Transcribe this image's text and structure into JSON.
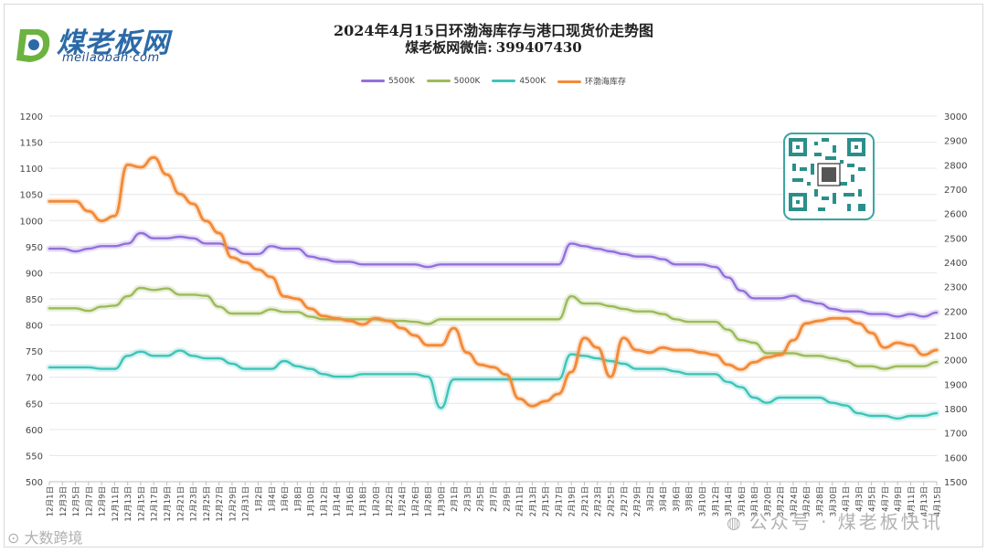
{
  "header": {
    "title": "2024年4月15日环渤海库存与港口现货价走势图",
    "subtitle_prefix": "煤老板网微信:",
    "subtitle_id": "399407430"
  },
  "logo": {
    "cn": "煤老板网",
    "en": "meilaoban·com"
  },
  "watermarks": {
    "left": "大数跨境",
    "right": "公众号 · 煤老板快讯"
  },
  "colors": {
    "s5500": "#9370db",
    "s5000": "#9cbb59",
    "s4500": "#3ec4b9",
    "inventory": "#f28b3a"
  },
  "chart_data": {
    "type": "line",
    "title": "2024年4月15日环渤海库存与港口现货价走势图",
    "left_axis": {
      "ylim": [
        500,
        1200
      ],
      "ticks": [
        "500",
        "550",
        "600",
        "650",
        "700",
        "750",
        "800",
        "850",
        "900",
        "950",
        "1000",
        "1050",
        "1100",
        "1150",
        "1200"
      ]
    },
    "right_axis": {
      "ylim": [
        1500,
        3000
      ],
      "ticks": [
        "1500",
        "1600",
        "1700",
        "1800",
        "1900",
        "2000",
        "2100",
        "2200",
        "2300",
        "2400",
        "2500",
        "2600",
        "2700",
        "2800",
        "2900",
        "3000"
      ]
    },
    "categories": [
      "12月1日",
      "12月3日",
      "12月5日",
      "12月7日",
      "12月9日",
      "12月11日",
      "12月13日",
      "12月15日",
      "12月17日",
      "12月19日",
      "12月21日",
      "12月23日",
      "12月25日",
      "12月27日",
      "12月29日",
      "12月31日",
      "1月2日",
      "1月4日",
      "1月6日",
      "1月8日",
      "1月10日",
      "1月12日",
      "1月14日",
      "1月16日",
      "1月18日",
      "1月20日",
      "1月22日",
      "1月24日",
      "1月26日",
      "1月28日",
      "1月30日",
      "2月1日",
      "2月3日",
      "2月5日",
      "2月7日",
      "2月9日",
      "2月11日",
      "2月13日",
      "2月15日",
      "2月17日",
      "2月19日",
      "2月21日",
      "2月23日",
      "2月25日",
      "2月27日",
      "2月29日",
      "3月2日",
      "3月4日",
      "3月6日",
      "3月8日",
      "3月10日",
      "3月12日",
      "3月14日",
      "3月16日",
      "3月18日",
      "3月20日",
      "3月22日",
      "3月24日",
      "3月26日",
      "3月28日",
      "3月30日",
      "4月1日",
      "4月3日",
      "4月5日",
      "4月7日",
      "4月9日",
      "4月11日",
      "4月13日",
      "4月15日"
    ],
    "series": [
      {
        "name": "5500K",
        "axis": "left",
        "color": "#9370db",
        "values": [
          946,
          946,
          941,
          946,
          951,
          951,
          956,
          976,
          966,
          966,
          969,
          966,
          956,
          956,
          946,
          936,
          936,
          951,
          946,
          946,
          931,
          926,
          921,
          921,
          916,
          916,
          916,
          916,
          916,
          911,
          916,
          916,
          916,
          916,
          916,
          916,
          916,
          916,
          916,
          916,
          956,
          951,
          946,
          941,
          936,
          931,
          931,
          926,
          916,
          916,
          916,
          911,
          891,
          866,
          851,
          851,
          851,
          856,
          846,
          841,
          831,
          826,
          826,
          821,
          821,
          816,
          821,
          816,
          824
        ]
      },
      {
        "name": "5000K",
        "axis": "left",
        "color": "#9cbb59",
        "values": [
          832,
          832,
          832,
          827,
          835,
          837,
          855,
          871,
          867,
          870,
          858,
          858,
          856,
          835,
          822,
          822,
          822,
          830,
          825,
          825,
          816,
          811,
          811,
          811,
          811,
          811,
          808,
          808,
          806,
          802,
          811,
          811,
          811,
          811,
          811,
          811,
          811,
          811,
          811,
          811,
          855,
          841,
          841,
          836,
          831,
          826,
          826,
          821,
          811,
          806,
          806,
          806,
          791,
          771,
          766,
          746,
          746,
          746,
          741,
          741,
          736,
          731,
          721,
          721,
          716,
          721,
          721,
          721,
          729
        ]
      },
      {
        "name": "4500K",
        "axis": "left",
        "color": "#3ec4b9",
        "values": [
          719,
          719,
          719,
          719,
          716,
          716,
          741,
          749,
          741,
          741,
          751,
          741,
          736,
          736,
          726,
          716,
          716,
          716,
          731,
          721,
          716,
          706,
          701,
          701,
          706,
          706,
          706,
          706,
          706,
          701,
          641,
          696,
          696,
          696,
          696,
          696,
          696,
          696,
          696,
          696,
          744,
          741,
          736,
          731,
          726,
          716,
          716,
          716,
          711,
          706,
          706,
          706,
          691,
          681,
          661,
          651,
          661,
          661,
          661,
          661,
          651,
          646,
          631,
          626,
          626,
          621,
          626,
          626,
          631
        ]
      },
      {
        "name": "环渤海库存",
        "axis": "right",
        "color": "#f28b3a",
        "values": [
          2650,
          2650,
          2650,
          2610,
          2570,
          2590,
          2800,
          2790,
          2830,
          2760,
          2680,
          2640,
          2570,
          2520,
          2420,
          2400,
          2370,
          2340,
          2260,
          2250,
          2210,
          2180,
          2170,
          2160,
          2145,
          2170,
          2160,
          2130,
          2100,
          2060,
          2060,
          2130,
          2030,
          1980,
          1970,
          1940,
          1840,
          1810,
          1830,
          1860,
          1950,
          2090,
          2050,
          1930,
          2090,
          2040,
          2030,
          2050,
          2040,
          2040,
          2030,
          2020,
          1980,
          1960,
          1990,
          2010,
          2020,
          2080,
          2150,
          2160,
          2170,
          2170,
          2150,
          2110,
          2050,
          2070,
          2060,
          2020,
          2040
        ]
      }
    ]
  }
}
